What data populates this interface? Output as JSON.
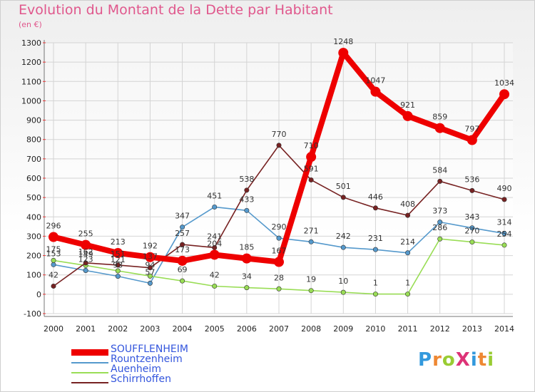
{
  "title": "Evolution du Montant de la Dette par Habitant",
  "unit": "(en €)",
  "logo": {
    "text": "ProXiti",
    "letters": [
      "P",
      "r",
      "o",
      "X",
      "i",
      "t",
      "i"
    ],
    "colors": [
      "#3399dd",
      "#ee8833",
      "#99cc33",
      "#dd3377",
      "#3399dd",
      "#ee8833",
      "#99cc33"
    ]
  },
  "chart_data": {
    "type": "line",
    "title": "Evolution du Montant de la Dette par Habitant",
    "ylabel": "(en €)",
    "ylim": [
      -100,
      1300
    ],
    "yticks": [
      -100,
      0,
      100,
      200,
      300,
      400,
      500,
      600,
      700,
      800,
      900,
      1000,
      1100,
      1200,
      1300
    ],
    "x": [
      "2000",
      "2001",
      "2002",
      "2003",
      "2004",
      "2005",
      "2006",
      "2007",
      "2008",
      "2009",
      "2010",
      "2011",
      "2012",
      "2013",
      "2014"
    ],
    "grid": true,
    "legend": "bottom-left",
    "series": [
      {
        "name": "SOUFFLENHEIM",
        "color": "#ee0000",
        "bold": true,
        "values": [
          296,
          255,
          213,
          192,
          173,
          204,
          185,
          167,
          710,
          1248,
          1047,
          921,
          859,
          797,
          1034
        ]
      },
      {
        "name": "Rountzenheim",
        "color": "#5599cc",
        "values": [
          153,
          123,
          93,
          57,
          347,
          451,
          433,
          290,
          271,
          242,
          231,
          214,
          373,
          343,
          314
        ]
      },
      {
        "name": "Auenheim",
        "color": "#99dd55",
        "values": [
          175,
          149,
          121,
          94,
          69,
          42,
          34,
          28,
          19,
          10,
          1,
          1,
          286,
          270,
          254
        ]
      },
      {
        "name": "Schirrhoffen",
        "color": "#772222",
        "values": [
          42,
          162,
          151,
          137,
          257,
          241,
          538,
          770,
          591,
          501,
          446,
          408,
          584,
          536,
          490
        ]
      }
    ]
  }
}
